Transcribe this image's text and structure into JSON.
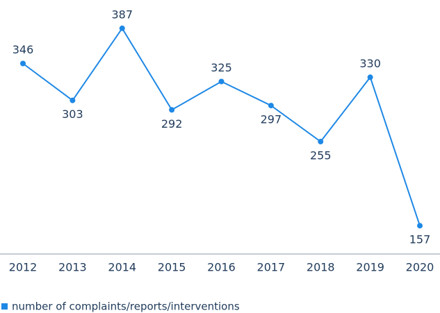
{
  "chart_data": {
    "type": "line",
    "categories": [
      "2012",
      "2013",
      "2014",
      "2015",
      "2016",
      "2017",
      "2018",
      "2019",
      "2020"
    ],
    "series": [
      {
        "name": "number of complaints/reports/interventions",
        "color": "#1e88e5",
        "values": [
          346,
          303,
          387,
          292,
          325,
          297,
          255,
          330,
          157
        ]
      }
    ],
    "ylim": [
      124,
      420
    ]
  }
}
